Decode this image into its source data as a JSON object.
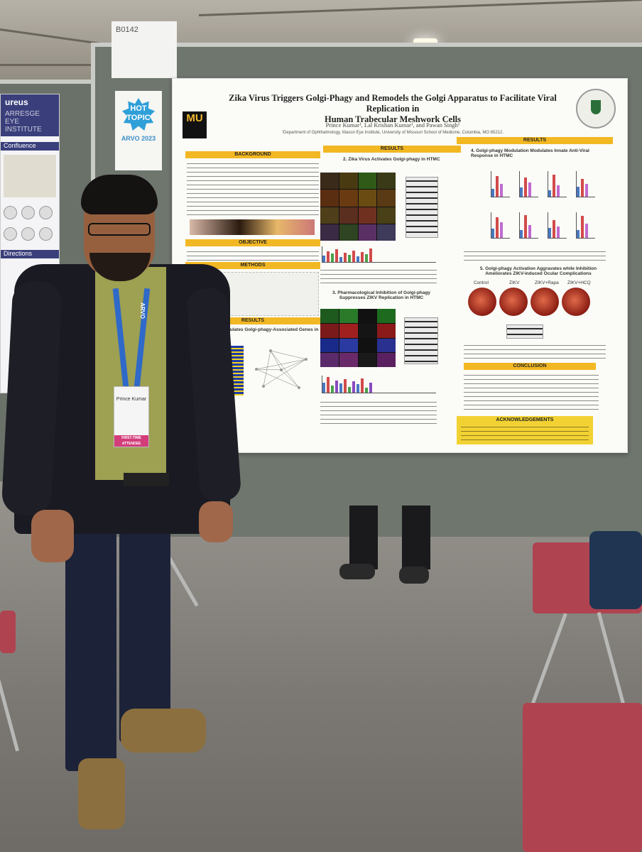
{
  "booth": {
    "number_sign": "B0142",
    "hot_topic_badge": {
      "line1": "HOT",
      "line2": "TOPIC",
      "event": "ARVO 2023"
    }
  },
  "side_poster": {
    "header": "ureus",
    "subheader": "ARRESGE EYE INSTITUTE",
    "bar1": "Confluence",
    "bar2": "Directions"
  },
  "poster": {
    "title_line1": "Zika Virus Triggers Golgi-Phagy and Remodels the Golgi Apparatus to Facilitate Viral Replication in",
    "title_line2": "Human Trabecular Meshwork Cells",
    "authors": "Prince Kumar¹, Lal Krishan Kumar¹, and Pawan Singh¹",
    "affiliation": "¹Department of Ophthalmology, Mason Eye Institute, University of Missouri School of Medicine, Columbia, MO 65212.",
    "logo_text": "MU",
    "sections": {
      "background": "BACKGROUND",
      "objective": "OBJECTIVE",
      "methods": "METHODS",
      "results_left": "RESULTS",
      "results_mid": "RESULTS",
      "results_right": "RESULTS",
      "conclusion": "CONCLUSION",
      "acknowledgements": "ACKNOWLEDGEMENTS"
    },
    "subheadings": {
      "s1": "1. Zika Virus Upregulates Golgi-phagy-Associated Genes in HTMC",
      "s2": "2. Zika Virus Activates Golgi-phagy in HTMC",
      "s3": "3. Pharmacological Inhibition of Golgi-phagy Suppresses ZIKV Replication in HTMC",
      "s4": "4. Golgi-phagy Modulation Modulates Innate Anti-Viral Response in HTMC",
      "s5": "5. Golgi-phagy Activation Aggravates while Inhibition Ameliorates ZIKV-induced Ocular Complications"
    },
    "fundus_labels": [
      "Control",
      "ZIKV",
      "ZIKV+Rapa",
      "ZIKV+HCQ"
    ]
  },
  "attendee": {
    "badge_name": "Prince Kumar",
    "badge_ribbon": "FIRST-TIME ATTENDEE",
    "lanyard_text": "ARVO"
  },
  "colors": {
    "banner_gold": "#f2b823",
    "mu_black": "#111111",
    "mu_gold": "#f1b82d",
    "chair_red": "#b04350",
    "wall_green_gray": "#6f766e"
  }
}
